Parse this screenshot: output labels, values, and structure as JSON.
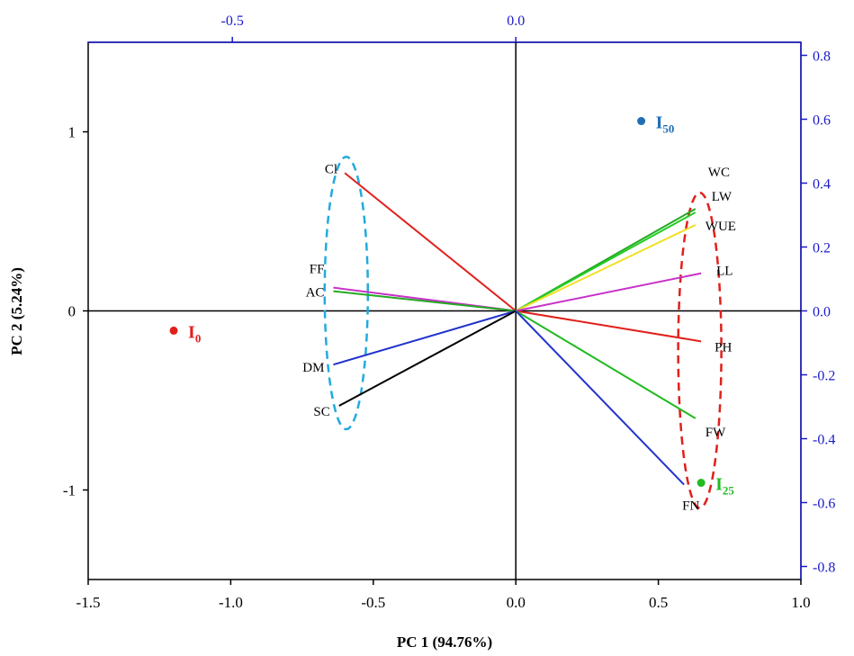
{
  "chart_data": {
    "type": "biplot",
    "xlabel": "PC 1 (94.76%)",
    "ylabel": "PC 2 (5.24%)",
    "xlim": [
      -1.5,
      1.0
    ],
    "ylim": [
      -1.5,
      1.5
    ],
    "x_ticks": [
      -1.5,
      -1.0,
      -0.5,
      0.0,
      0.5,
      1.0
    ],
    "x_tick_labels": [
      "-1.5",
      "-1.0",
      "-0.5",
      "0.0",
      "0.5",
      "1.0"
    ],
    "y_ticks": [
      -1,
      0,
      1
    ],
    "y_tick_labels": [
      "-1",
      "0",
      "1"
    ],
    "secondary_x_ticks": [
      -0.5,
      0.0
    ],
    "secondary_x_tick_labels": [
      "-0.5",
      "0.0"
    ],
    "secondary_y_ticks": [
      -0.8,
      -0.6,
      -0.4,
      -0.2,
      0.0,
      0.2,
      0.4,
      0.6,
      0.8
    ],
    "secondary_y_tick_labels": [
      "-0.8",
      "-0.6",
      "-0.4",
      "-0.2",
      "0.0",
      "0.2",
      "0.4",
      "0.6",
      "0.8"
    ],
    "secondary_axis_color": "#1a1acc",
    "loadings": [
      {
        "name": "Cl",
        "x": -0.6,
        "y": 0.77,
        "color": "#e0201b"
      },
      {
        "name": "FF",
        "x": -0.64,
        "y": 0.13,
        "color": "#c832c8"
      },
      {
        "name": "AC",
        "x": -0.64,
        "y": 0.11,
        "color": "#22aa22"
      },
      {
        "name": "DM",
        "x": -0.64,
        "y": -0.3,
        "color": "#2233cc"
      },
      {
        "name": "SC",
        "x": -0.62,
        "y": -0.53,
        "color": "#000000"
      },
      {
        "name": "WC",
        "x": 0.63,
        "y": 0.57,
        "color": "#22aa22"
      },
      {
        "name": "LW",
        "x": 0.63,
        "y": 0.55,
        "color": "#22cc22"
      },
      {
        "name": "WUE",
        "x": 0.63,
        "y": 0.48,
        "color": "#f0e020"
      },
      {
        "name": "LL",
        "x": 0.65,
        "y": 0.21,
        "color": "#c832c8"
      },
      {
        "name": "PH",
        "x": 0.65,
        "y": -0.17,
        "color": "#e0201b"
      },
      {
        "name": "FW",
        "x": 0.63,
        "y": -0.6,
        "color": "#22bb22"
      },
      {
        "name": "FN",
        "x": 0.59,
        "y": -0.97,
        "color": "#2233cc"
      }
    ],
    "scores": [
      {
        "name": "I",
        "subscript": "0",
        "x": -1.2,
        "y": -0.11,
        "color": "#e0201b"
      },
      {
        "name": "I",
        "subscript": "50",
        "x": 0.44,
        "y": 1.06,
        "color": "#1f6fb4"
      },
      {
        "name": "I",
        "subscript": "25",
        "x": 0.65,
        "y": -0.96,
        "color": "#22bb22"
      }
    ],
    "groups": [
      {
        "name": "left-cluster",
        "color": "#22aadd",
        "members": [
          "Cl",
          "FF",
          "AC",
          "DM",
          "SC"
        ]
      },
      {
        "name": "right-cluster",
        "color": "#e0201b",
        "members": [
          "WC",
          "LW",
          "WUE",
          "LL",
          "PH",
          "FW",
          "FN"
        ]
      }
    ]
  }
}
